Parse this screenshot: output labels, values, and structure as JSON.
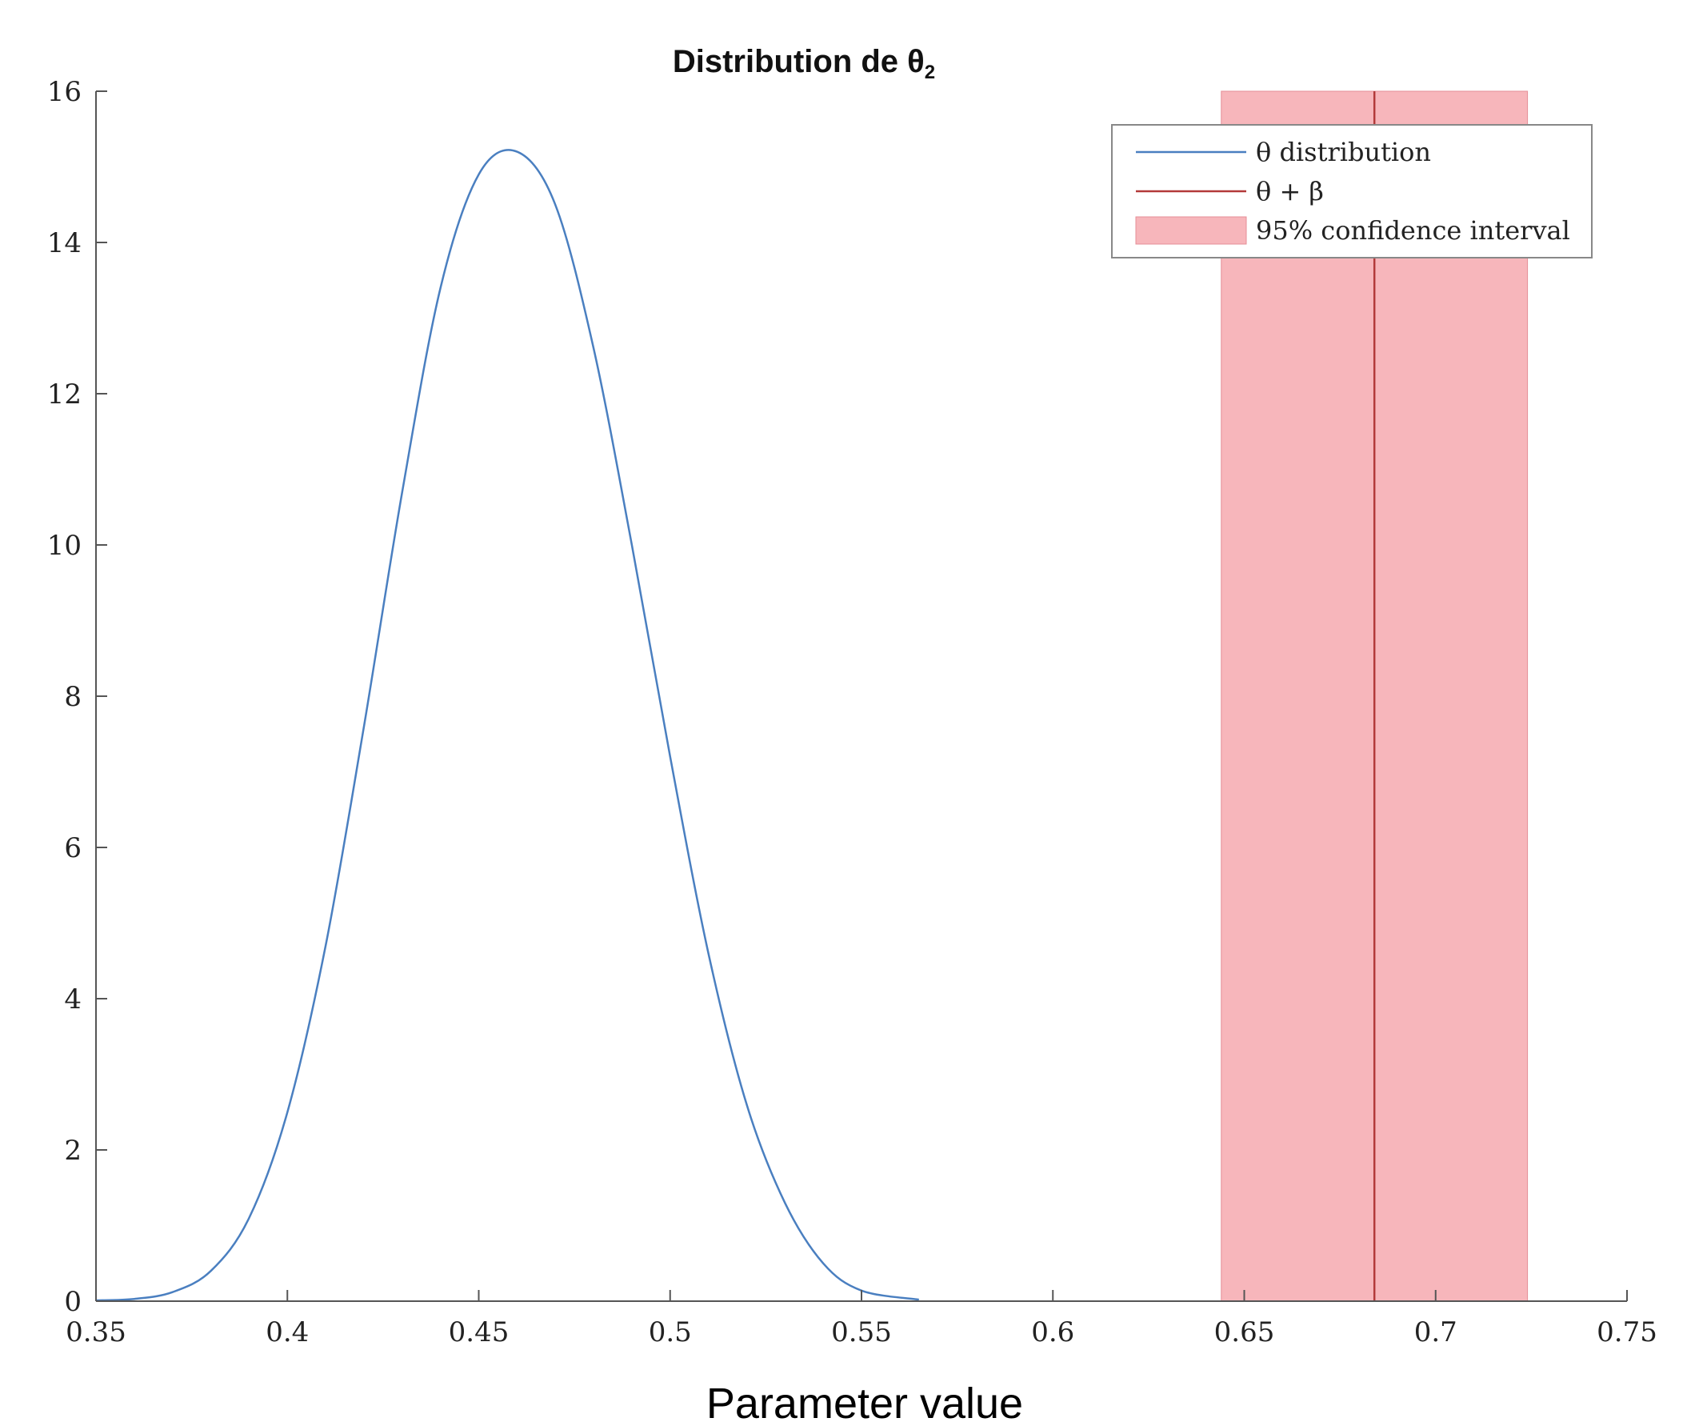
{
  "chart_data": {
    "type": "line",
    "title": "Distribution de θ",
    "title_subscript": "2",
    "xlabel": "Parameter value",
    "ylabel": "",
    "xlim": [
      0.35,
      0.75
    ],
    "ylim": [
      0,
      16
    ],
    "xticks": [
      0.35,
      0.4,
      0.45,
      0.5,
      0.55,
      0.6,
      0.65,
      0.7,
      0.75
    ],
    "xtick_labels": [
      "0.35",
      "0.4",
      "0.45",
      "0.5",
      "0.55",
      "0.6",
      "0.65",
      "0.7",
      "0.75"
    ],
    "yticks": [
      0,
      2,
      4,
      6,
      8,
      10,
      12,
      14,
      16
    ],
    "ytick_labels": [
      "0",
      "2",
      "4",
      "6",
      "8",
      "10",
      "12",
      "14",
      "16"
    ],
    "grid": false,
    "legend_position": "top-right",
    "series": [
      {
        "name": "θ distribution",
        "color": "#4a7fc0",
        "x": [
          0.35,
          0.36,
          0.37,
          0.38,
          0.39,
          0.4,
          0.41,
          0.42,
          0.43,
          0.44,
          0.45,
          0.46,
          0.47,
          0.48,
          0.49,
          0.5,
          0.51,
          0.52,
          0.53,
          0.54,
          0.55,
          0.565
        ],
        "y": [
          0.01,
          0.03,
          0.12,
          0.4,
          1.1,
          2.5,
          4.7,
          7.6,
          10.7,
          13.4,
          14.9,
          15.2,
          14.5,
          12.6,
          10.0,
          7.2,
          4.6,
          2.6,
          1.3,
          0.5,
          0.14,
          0.02
        ]
      },
      {
        "name": "θ + β",
        "color": "#b33a3a",
        "x": [
          0.684,
          0.684
        ],
        "y": [
          0,
          16
        ]
      }
    ],
    "band": {
      "name": "95% confidence interval",
      "color": "#f7b6bb",
      "x": [
        0.644,
        0.724
      ]
    }
  }
}
